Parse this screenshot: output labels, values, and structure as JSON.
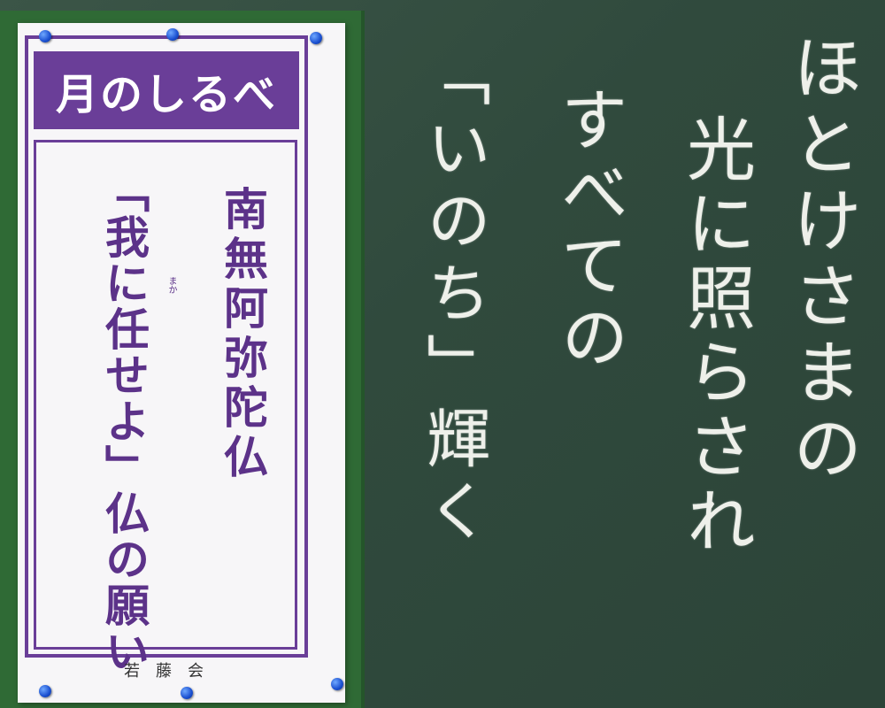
{
  "poster": {
    "title": "月のしるべ",
    "nembutsu": "南無阿弥陀仏",
    "phrase": "「我に任せよ」仏の願い",
    "ruby": "まか",
    "footer": "若藤会"
  },
  "chalkboard": {
    "line1": "ほとけさまの",
    "line2": "光に照らされ",
    "line3": "すべての",
    "line4": "「いのち」輝く"
  },
  "colors": {
    "poster_purple": "#6a3e98",
    "board_green": "#304a3d",
    "frame_green": "#2f6a35",
    "pin_blue": "#1a4fd0"
  }
}
